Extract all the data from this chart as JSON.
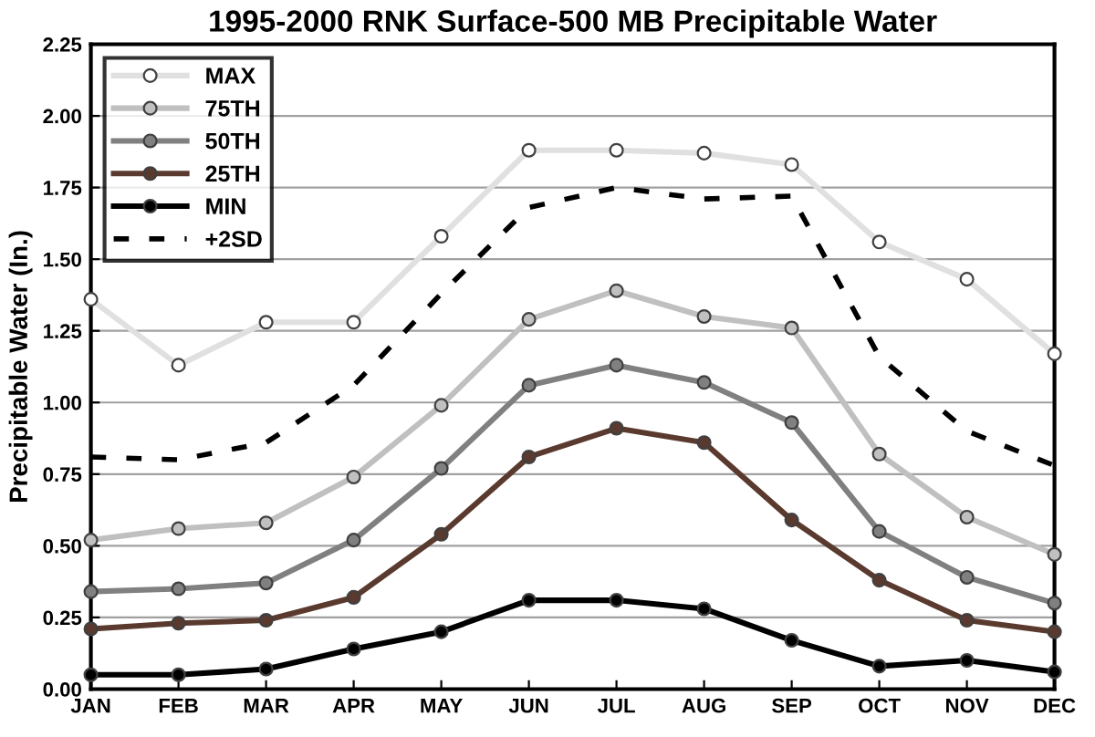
{
  "chart_data": {
    "type": "line",
    "title": "1995-2000 RNK Surface-500 MB Precipitable Water",
    "ylabel": "Precipitable Water (In.)",
    "categories": [
      "JAN",
      "FEB",
      "MAR",
      "APR",
      "MAY",
      "JUN",
      "JUL",
      "AUG",
      "SEP",
      "OCT",
      "NOV",
      "DEC"
    ],
    "series": [
      {
        "name": "MAX",
        "color": "#e0e0e0",
        "marker": "circle",
        "line_style": "solid",
        "values": [
          1.36,
          1.13,
          1.28,
          1.28,
          1.58,
          1.88,
          1.88,
          1.87,
          1.83,
          1.56,
          1.43,
          1.17
        ]
      },
      {
        "name": "75TH",
        "color": "#c0c0c0",
        "marker": "circle",
        "line_style": "solid",
        "values": [
          0.52,
          0.56,
          0.58,
          0.74,
          0.99,
          1.29,
          1.39,
          1.3,
          1.26,
          0.82,
          0.6,
          0.47
        ]
      },
      {
        "name": "50TH",
        "color": "#808080",
        "marker": "circle",
        "line_style": "solid",
        "values": [
          0.34,
          0.35,
          0.37,
          0.52,
          0.77,
          1.06,
          1.13,
          1.07,
          0.93,
          0.55,
          0.39,
          0.3
        ]
      },
      {
        "name": "25TH",
        "color": "#5a3a2e",
        "marker": "circle",
        "line_style": "solid",
        "values": [
          0.21,
          0.23,
          0.24,
          0.32,
          0.54,
          0.81,
          0.91,
          0.86,
          0.59,
          0.38,
          0.24,
          0.2
        ]
      },
      {
        "name": "MIN",
        "color": "#000000",
        "marker": "circle",
        "line_style": "solid",
        "values": [
          0.05,
          0.05,
          0.07,
          0.14,
          0.2,
          0.31,
          0.31,
          0.28,
          0.17,
          0.08,
          0.1,
          0.06
        ]
      },
      {
        "name": "+2SD",
        "color": "#000000",
        "marker": "none",
        "line_style": "dashed",
        "values": [
          0.81,
          0.8,
          0.86,
          1.06,
          1.38,
          1.68,
          1.75,
          1.71,
          1.72,
          1.16,
          0.9,
          0.78
        ]
      }
    ],
    "ylim": [
      0,
      2.25
    ],
    "yticks": [
      {
        "value": 0,
        "label": "0.00"
      },
      {
        "value": 0.25,
        "label": "0.25"
      },
      {
        "value": 0.5,
        "label": "0.50"
      },
      {
        "value": 0.75,
        "label": "0.75"
      },
      {
        "value": 1.0,
        "label": "1.00"
      },
      {
        "value": 1.25,
        "label": "1.25"
      },
      {
        "value": 1.5,
        "label": "1.50"
      },
      {
        "value": 1.75,
        "label": "1.75"
      },
      {
        "value": 2.0,
        "label": "2.00"
      },
      {
        "value": 2.25,
        "label": "2.25"
      }
    ],
    "grid": "y",
    "legend": "top left"
  }
}
